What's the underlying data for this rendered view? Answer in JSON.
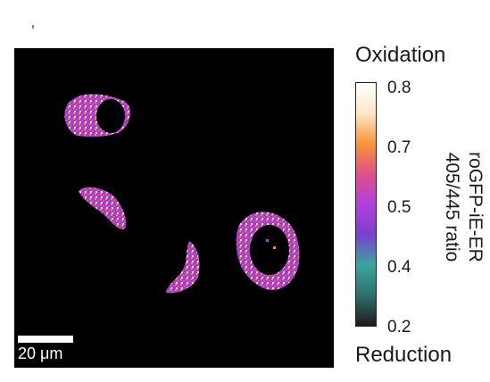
{
  "figure": {
    "top_label": "Oxidation",
    "bottom_label": "Reduction",
    "scale_bar_label": "20 μm",
    "colorbar": {
      "title_line1": "roGFP-iE-ER",
      "title_line2": "405/445 ratio",
      "ticks": [
        "0.8",
        "0.7",
        "0.5",
        "0.4",
        "0.2"
      ],
      "colors": [
        "#1c1c1c",
        "#2f6e6a",
        "#3aa6a0",
        "#7b3fd0",
        "#b040e0",
        "#e0508a",
        "#f7933a",
        "#ffe6c8",
        "#ffffff"
      ]
    },
    "image_background": "#000000"
  }
}
